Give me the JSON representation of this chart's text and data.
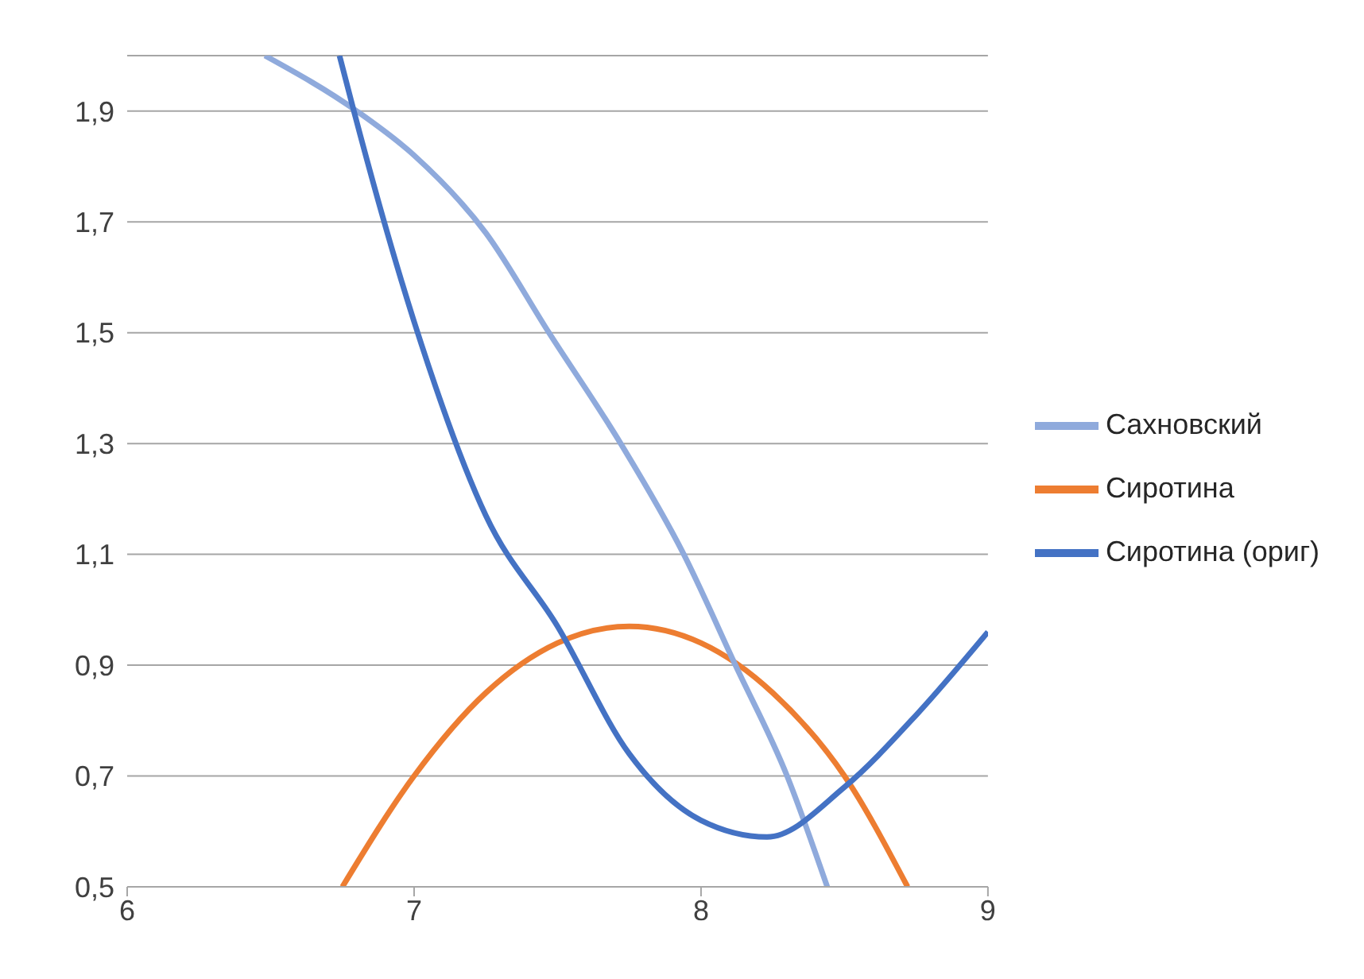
{
  "chart_data": {
    "type": "line",
    "xlim": [
      6,
      9
    ],
    "xticks": [
      6,
      7,
      8,
      9
    ],
    "ylim": [
      0.5,
      2.0
    ],
    "yticks": [
      {
        "value": 0.5,
        "label": "0,5"
      },
      {
        "value": 0.7,
        "label": "0,7"
      },
      {
        "value": 0.9,
        "label": "0,9"
      },
      {
        "value": 1.1,
        "label": "1,1"
      },
      {
        "value": 1.3,
        "label": "1,3"
      },
      {
        "value": 1.5,
        "label": "1,5"
      },
      {
        "value": 1.7,
        "label": "1,7"
      },
      {
        "value": 1.9,
        "label": "1,9"
      }
    ],
    "grid": "y",
    "legend": "right",
    "marker": "none",
    "line_style": "solid",
    "series": [
      {
        "name": "Сиротина",
        "color": "#ed7d31",
        "x": [
          6.75,
          7.0,
          7.25,
          7.5,
          7.75,
          8.0,
          8.25,
          8.5,
          8.72
        ],
        "values": [
          0.5,
          0.7,
          0.85,
          0.94,
          0.97,
          0.94,
          0.85,
          0.7,
          0.5
        ]
      },
      {
        "name": "Сахновский",
        "color": "#8faadc",
        "x": [
          6.48,
          6.8,
          7.0,
          7.25,
          7.47,
          7.72,
          7.94,
          8.12,
          8.3,
          8.44
        ],
        "values": [
          2.0,
          1.9,
          1.82,
          1.68,
          1.5,
          1.3,
          1.1,
          0.9,
          0.7,
          0.5
        ]
      },
      {
        "name": "Сиротина (ориг)",
        "color": "#4472c4",
        "x": [
          6.74,
          6.79,
          7.0,
          7.25,
          7.5,
          7.75,
          8.0,
          8.23,
          8.5,
          8.75,
          9.0
        ],
        "values": [
          2.0,
          1.9,
          1.52,
          1.17,
          0.97,
          0.74,
          0.62,
          0.59,
          0.68,
          0.81,
          0.96
        ]
      }
    ]
  }
}
